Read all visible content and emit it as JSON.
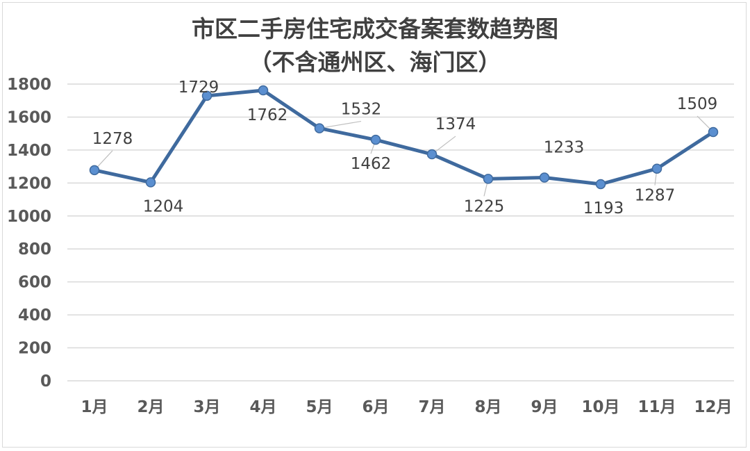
{
  "chart_data": {
    "type": "line",
    "title": "市区二手房住宅成交备案套数趋势图",
    "subtitle": "（不含通州区、海门区）",
    "categories": [
      "1月",
      "2月",
      "3月",
      "4月",
      "5月",
      "6月",
      "7月",
      "8月",
      "9月",
      "10月",
      "11月",
      "12月"
    ],
    "series": [
      {
        "values": [
          1278,
          1204,
          1729,
          1762,
          1532,
          1462,
          1374,
          1225,
          1233,
          1193,
          1287,
          1509
        ]
      }
    ],
    "ylim": [
      0,
      1800
    ],
    "yticks": [
      0,
      200,
      400,
      600,
      800,
      1000,
      1200,
      1400,
      1600,
      1800
    ],
    "grid": true,
    "data_labels": true,
    "colors": {
      "line": "#3f6a9e",
      "marker": "#5b8fd0",
      "grid": "#d9d9d9",
      "text": "#404040"
    }
  }
}
